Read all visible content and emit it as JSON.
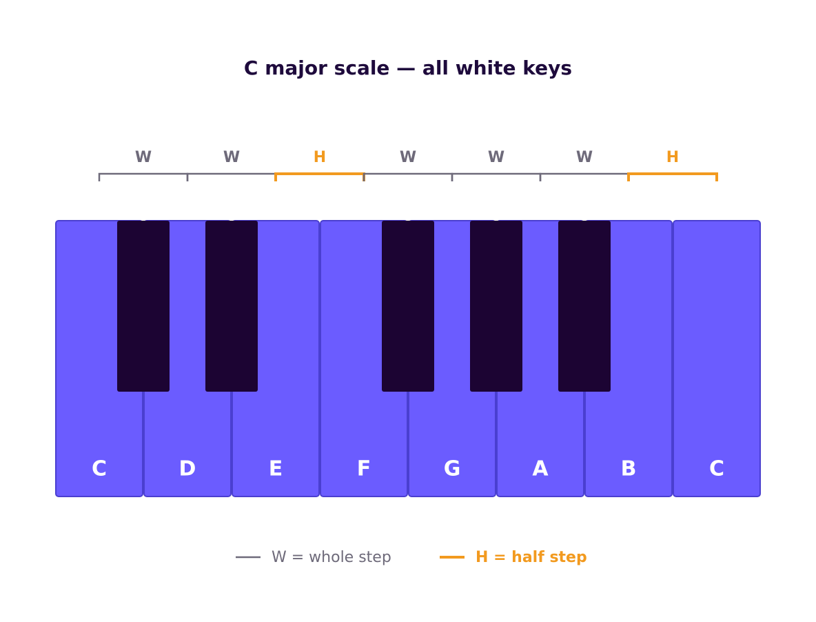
{
  "title": "C major scale — all white keys",
  "steps": [
    {
      "label": "W",
      "color": "#6e6a7a"
    },
    {
      "label": "W",
      "color": "#6e6a7a"
    },
    {
      "label": "H",
      "color": "#f29a1f"
    },
    {
      "label": "W",
      "color": "#6e6a7a"
    },
    {
      "label": "W",
      "color": "#6e6a7a"
    },
    {
      "label": "W",
      "color": "#6e6a7a"
    },
    {
      "label": "H",
      "color": "#f29a1f"
    }
  ],
  "keys": [
    "C",
    "D",
    "E",
    "F",
    "G",
    "A",
    "B",
    "C"
  ],
  "legend": [
    {
      "label": "W = whole step",
      "color": "#6e6a7a"
    },
    {
      "label": "H = half step",
      "color": "#f29a1f"
    }
  ]
}
